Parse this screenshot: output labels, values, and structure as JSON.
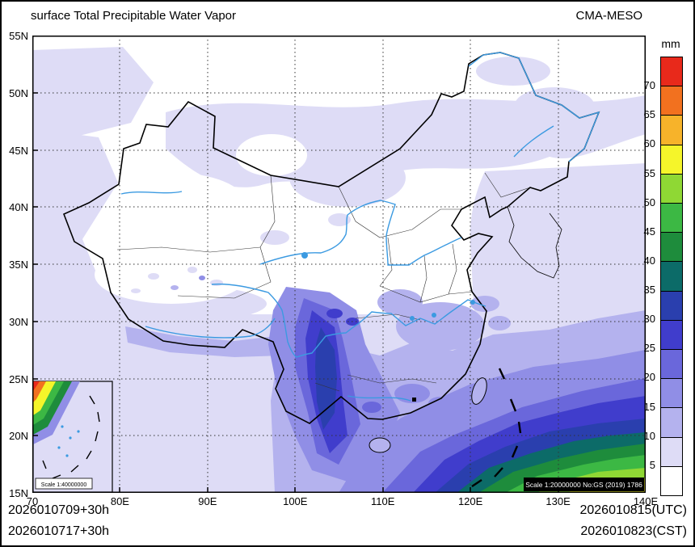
{
  "header": {
    "title": "surface Total Precipitable Water Vapor",
    "model": "CMA-MESO"
  },
  "colorbar": {
    "unit": "mm",
    "levels": [
      "5",
      "10",
      "15",
      "20",
      "25",
      "30",
      "35",
      "40",
      "45",
      "50",
      "55",
      "60",
      "65",
      "70"
    ],
    "colors": [
      "#ffffff",
      "#dedcf6",
      "#b4b2ee",
      "#908ee6",
      "#6a67db",
      "#403dcc",
      "#2a3fae",
      "#0c6b68",
      "#1e8c3c",
      "#3cb844",
      "#8fd834",
      "#f5f52a",
      "#f7b32a",
      "#f2711f",
      "#e8291b"
    ]
  },
  "axes": {
    "lat_labels": [
      "55N",
      "50N",
      "45N",
      "40N",
      "35N",
      "30N",
      "25N",
      "20N",
      "15N"
    ],
    "lon_labels": [
      "70",
      "80E",
      "90E",
      "100E",
      "110E",
      "120E",
      "130E",
      "140E"
    ]
  },
  "map": {
    "inset_scale": "Scale 1:40000000",
    "scale_note": "Scale 1:20000000 No:GS (2019) 1786"
  },
  "footer": {
    "init_utc": "2026010709+30h",
    "init_cst": "2026010717+30h",
    "valid_utc": "2026010815(UTC)",
    "valid_cst": "2026010823(CST)"
  },
  "chart_data": {
    "type": "heatmap",
    "title": "surface Total Precipitable Water Vapor",
    "unit": "mm",
    "contour_levels": [
      5,
      10,
      15,
      20,
      25,
      30,
      35,
      40,
      45,
      50,
      55,
      60,
      65,
      70
    ],
    "lon_range": [
      70,
      140
    ],
    "lat_range": [
      15,
      55
    ],
    "lon_ticks": [
      70,
      80,
      90,
      100,
      110,
      120,
      130,
      140
    ],
    "lat_ticks": [
      55,
      50,
      45,
      40,
      35,
      30,
      25,
      20,
      15
    ],
    "legend_position": "right",
    "grid": "dotted"
  }
}
